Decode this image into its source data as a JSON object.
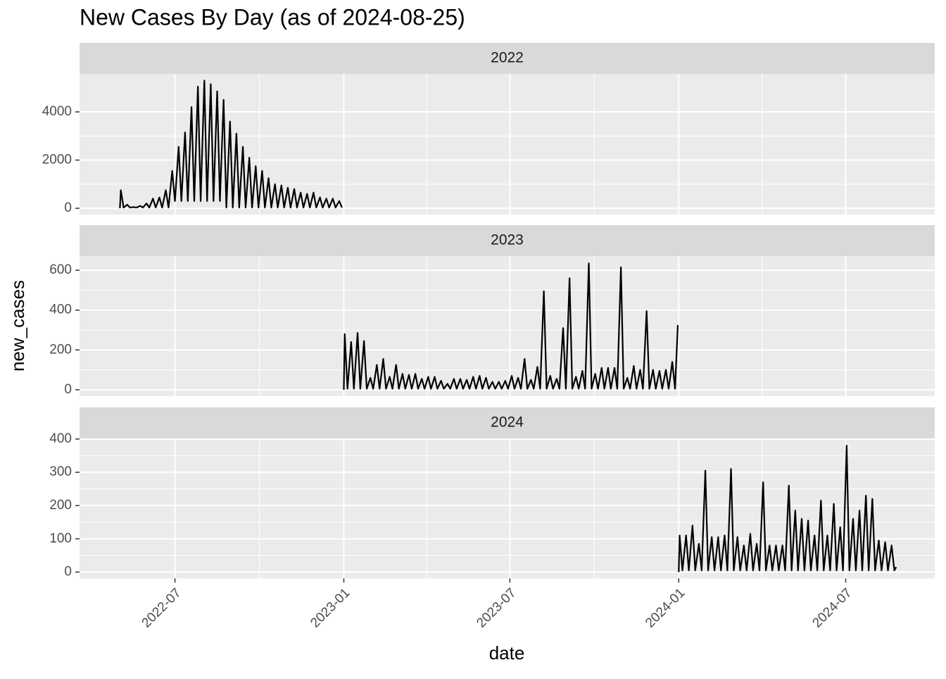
{
  "chart_data": {
    "type": "line",
    "title": "New Cases By Day (as of 2024-08-25)",
    "x_label": "date",
    "y_label": "new_cases",
    "color": "#000000",
    "grid": true,
    "xlim": [
      "2022-03-19",
      "2024-10-06"
    ],
    "xticks": [
      {
        "value": "2022-07-01",
        "label": "2022-07"
      },
      {
        "value": "2023-01-01",
        "label": "2023-01"
      },
      {
        "value": "2023-07-01",
        "label": "2023-07"
      },
      {
        "value": "2024-01-01",
        "label": "2024-01"
      },
      {
        "value": "2024-07-01",
        "label": "2024-07"
      }
    ],
    "facets": [
      {
        "label": "2022",
        "ylim": [
          -263,
          5577
        ],
        "yticks": [
          0,
          2000,
          4000
        ],
        "x": [
          "2022-05-02",
          "2022-05-03",
          "2022-05-06",
          "2022-05-10",
          "2022-05-13",
          "2022-05-17",
          "2022-05-20",
          "2022-05-24",
          "2022-05-27",
          "2022-05-31",
          "2022-06-03",
          "2022-06-07",
          "2022-06-10",
          "2022-06-14",
          "2022-06-17",
          "2022-06-21",
          "2022-06-24",
          "2022-06-28",
          "2022-07-01",
          "2022-07-05",
          "2022-07-08",
          "2022-07-12",
          "2022-07-15",
          "2022-07-19",
          "2022-07-22",
          "2022-07-26",
          "2022-07-29",
          "2022-08-02",
          "2022-08-05",
          "2022-08-09",
          "2022-08-12",
          "2022-08-16",
          "2022-08-19",
          "2022-08-23",
          "2022-08-26",
          "2022-08-30",
          "2022-09-02",
          "2022-09-06",
          "2022-09-09",
          "2022-09-13",
          "2022-09-16",
          "2022-09-20",
          "2022-09-23",
          "2022-09-27",
          "2022-09-30",
          "2022-10-04",
          "2022-10-07",
          "2022-10-11",
          "2022-10-14",
          "2022-10-18",
          "2022-10-21",
          "2022-10-25",
          "2022-10-28",
          "2022-11-01",
          "2022-11-04",
          "2022-11-08",
          "2022-11-11",
          "2022-11-15",
          "2022-11-18",
          "2022-11-22",
          "2022-11-25",
          "2022-11-29",
          "2022-12-02",
          "2022-12-06",
          "2022-12-09",
          "2022-12-13",
          "2022-12-16",
          "2022-12-20",
          "2022-12-23",
          "2022-12-27",
          "2022-12-30"
        ],
        "values": [
          0,
          750,
          30,
          150,
          30,
          50,
          30,
          100,
          30,
          200,
          30,
          400,
          30,
          450,
          30,
          750,
          30,
          1550,
          300,
          2550,
          300,
          3150,
          300,
          4200,
          300,
          5050,
          300,
          5300,
          300,
          5150,
          300,
          4850,
          300,
          4500,
          30,
          3600,
          30,
          3100,
          30,
          2550,
          30,
          2100,
          30,
          1750,
          30,
          1550,
          30,
          1250,
          30,
          1000,
          30,
          950,
          30,
          850,
          30,
          800,
          30,
          650,
          30,
          600,
          30,
          650,
          30,
          450,
          30,
          400,
          30,
          400,
          30,
          300,
          30
        ]
      },
      {
        "label": "2023",
        "ylim": [
          -32,
          671
        ],
        "yticks": [
          0,
          200,
          400,
          600
        ],
        "x": [
          "2023-01-01",
          "2023-01-02",
          "2023-01-05",
          "2023-01-09",
          "2023-01-12",
          "2023-01-16",
          "2023-01-19",
          "2023-01-23",
          "2023-01-26",
          "2023-01-30",
          "2023-02-02",
          "2023-02-06",
          "2023-02-09",
          "2023-02-13",
          "2023-02-16",
          "2023-02-20",
          "2023-02-23",
          "2023-02-27",
          "2023-03-02",
          "2023-03-06",
          "2023-03-09",
          "2023-03-13",
          "2023-03-16",
          "2023-03-20",
          "2023-03-23",
          "2023-03-27",
          "2023-03-30",
          "2023-04-03",
          "2023-04-06",
          "2023-04-10",
          "2023-04-13",
          "2023-04-17",
          "2023-04-20",
          "2023-04-24",
          "2023-04-27",
          "2023-05-01",
          "2023-05-04",
          "2023-05-08",
          "2023-05-11",
          "2023-05-15",
          "2023-05-18",
          "2023-05-22",
          "2023-05-25",
          "2023-05-29",
          "2023-06-01",
          "2023-06-05",
          "2023-06-08",
          "2023-06-12",
          "2023-06-15",
          "2023-06-19",
          "2023-06-22",
          "2023-06-26",
          "2023-06-29",
          "2023-07-03",
          "2023-07-06",
          "2023-07-10",
          "2023-07-13",
          "2023-07-17",
          "2023-07-20",
          "2023-07-24",
          "2023-07-27",
          "2023-07-31",
          "2023-08-03",
          "2023-08-07",
          "2023-08-10",
          "2023-08-14",
          "2023-08-17",
          "2023-08-21",
          "2023-08-24",
          "2023-08-28",
          "2023-08-31",
          "2023-09-04",
          "2023-09-07",
          "2023-09-11",
          "2023-09-14",
          "2023-09-18",
          "2023-09-21",
          "2023-09-25",
          "2023-09-28",
          "2023-10-02",
          "2023-10-05",
          "2023-10-09",
          "2023-10-12",
          "2023-10-16",
          "2023-10-19",
          "2023-10-23",
          "2023-10-26",
          "2023-10-30",
          "2023-11-02",
          "2023-11-06",
          "2023-11-09",
          "2023-11-13",
          "2023-11-16",
          "2023-11-20",
          "2023-11-23",
          "2023-11-27",
          "2023-11-30",
          "2023-12-04",
          "2023-12-07",
          "2023-12-11",
          "2023-12-14",
          "2023-12-18",
          "2023-12-21",
          "2023-12-25",
          "2023-12-28",
          "2023-12-31"
        ],
        "values": [
          0,
          280,
          5,
          240,
          5,
          285,
          5,
          245,
          5,
          60,
          5,
          125,
          5,
          155,
          5,
          65,
          5,
          125,
          5,
          80,
          5,
          75,
          5,
          80,
          5,
          55,
          5,
          65,
          5,
          65,
          5,
          45,
          5,
          30,
          5,
          55,
          5,
          55,
          5,
          50,
          5,
          65,
          5,
          70,
          5,
          60,
          5,
          40,
          5,
          40,
          5,
          45,
          5,
          70,
          5,
          60,
          5,
          155,
          5,
          50,
          5,
          115,
          5,
          495,
          5,
          70,
          5,
          55,
          5,
          310,
          5,
          560,
          5,
          65,
          5,
          95,
          5,
          635,
          5,
          80,
          5,
          110,
          5,
          110,
          5,
          110,
          5,
          615,
          5,
          60,
          5,
          120,
          5,
          100,
          5,
          395,
          5,
          100,
          5,
          95,
          5,
          100,
          5,
          140,
          5,
          325
        ]
      },
      {
        "label": "2024",
        "ylim": [
          -19,
          402
        ],
        "yticks": [
          0,
          100,
          200,
          300,
          400
        ],
        "x": [
          "2024-01-01",
          "2024-01-02",
          "2024-01-05",
          "2024-01-09",
          "2024-01-12",
          "2024-01-16",
          "2024-01-19",
          "2024-01-23",
          "2024-01-26",
          "2024-01-30",
          "2024-02-02",
          "2024-02-06",
          "2024-02-09",
          "2024-02-13",
          "2024-02-16",
          "2024-02-20",
          "2024-02-23",
          "2024-02-27",
          "2024-03-01",
          "2024-03-05",
          "2024-03-08",
          "2024-03-12",
          "2024-03-15",
          "2024-03-19",
          "2024-03-22",
          "2024-03-26",
          "2024-03-29",
          "2024-04-02",
          "2024-04-05",
          "2024-04-09",
          "2024-04-12",
          "2024-04-16",
          "2024-04-19",
          "2024-04-23",
          "2024-04-26",
          "2024-04-30",
          "2024-05-03",
          "2024-05-07",
          "2024-05-10",
          "2024-05-14",
          "2024-05-17",
          "2024-05-21",
          "2024-05-24",
          "2024-05-28",
          "2024-05-31",
          "2024-06-04",
          "2024-06-07",
          "2024-06-11",
          "2024-06-14",
          "2024-06-18",
          "2024-06-21",
          "2024-06-25",
          "2024-06-28",
          "2024-07-02",
          "2024-07-05",
          "2024-07-09",
          "2024-07-12",
          "2024-07-16",
          "2024-07-19",
          "2024-07-23",
          "2024-07-26",
          "2024-07-30",
          "2024-08-02",
          "2024-08-06",
          "2024-08-09",
          "2024-08-13",
          "2024-08-16",
          "2024-08-20",
          "2024-08-23",
          "2024-08-25"
        ],
        "values": [
          0,
          110,
          5,
          110,
          5,
          140,
          5,
          85,
          5,
          305,
          5,
          105,
          5,
          105,
          5,
          110,
          5,
          310,
          5,
          105,
          5,
          80,
          5,
          115,
          5,
          85,
          5,
          270,
          5,
          80,
          5,
          80,
          5,
          80,
          5,
          260,
          5,
          185,
          5,
          160,
          5,
          155,
          5,
          110,
          5,
          215,
          5,
          110,
          5,
          205,
          5,
          135,
          5,
          380,
          5,
          160,
          5,
          185,
          5,
          230,
          5,
          220,
          5,
          95,
          5,
          90,
          5,
          80,
          5,
          15
        ]
      }
    ]
  }
}
